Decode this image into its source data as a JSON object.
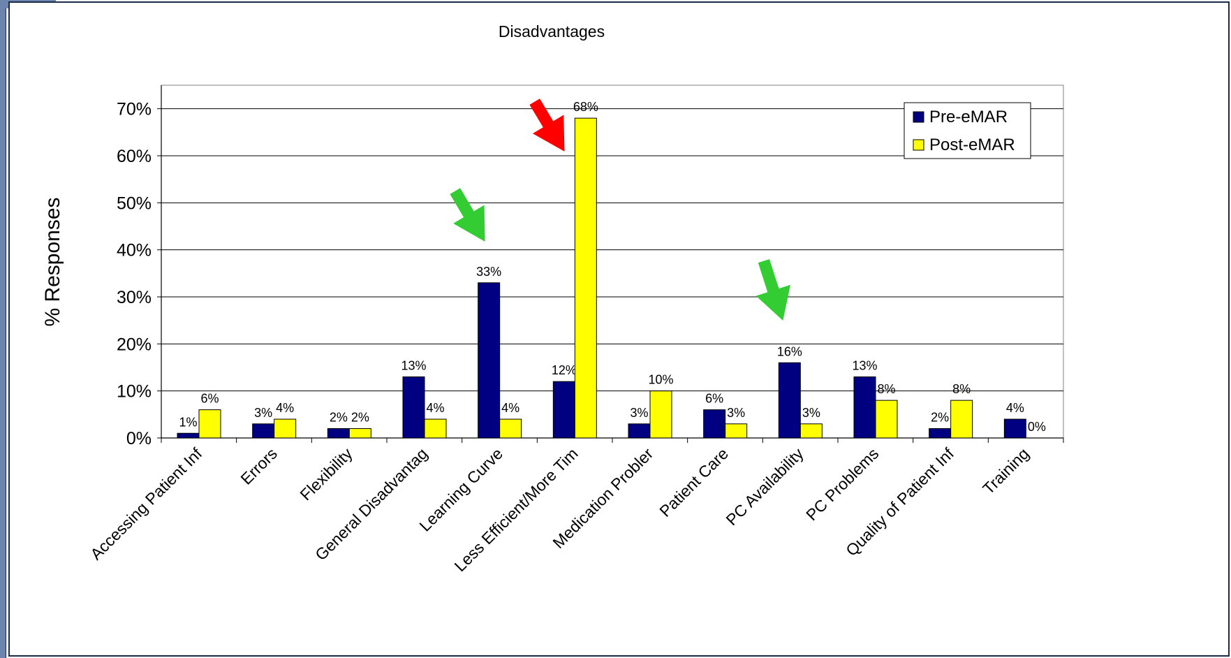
{
  "chart_data": {
    "type": "bar",
    "title": "Disadvantages",
    "xlabel": "",
    "ylabel": "% Responses",
    "ylim": [
      0,
      75
    ],
    "yticks": [
      "0%",
      "10%",
      "20%",
      "30%",
      "40%",
      "50%",
      "60%",
      "70%"
    ],
    "grid": true,
    "legend_position": "top-right",
    "categories": [
      "Accessing Patient Inf",
      "Errors",
      "Flexibility",
      "General Disadvantag",
      "Learning Curve",
      "Less Efficient/More Tim",
      "Medication Probler",
      "Patient Care",
      "PC Availability",
      "PC Problems",
      "Quality of Patient Inf",
      "Training"
    ],
    "series": [
      {
        "name": "Pre-eMAR",
        "color": "#000080",
        "values": [
          1,
          3,
          2,
          13,
          33,
          12,
          3,
          6,
          16,
          13,
          2,
          4
        ],
        "labels": [
          "1%",
          "3%",
          "2%",
          "13%",
          "33%",
          "12%",
          "3%",
          "6%",
          "16%",
          "13%",
          "2%",
          "4%"
        ]
      },
      {
        "name": "Post-eMAR",
        "color": "#ffff00",
        "values": [
          6,
          4,
          2,
          4,
          4,
          68,
          10,
          3,
          3,
          8,
          8,
          0
        ],
        "labels": [
          "6%",
          "4%",
          "2%",
          "4%",
          "4%",
          "68%",
          "10%",
          "3%",
          "3%",
          "8%",
          "8%",
          "0%"
        ]
      }
    ],
    "annotations": [
      {
        "type": "arrow",
        "color": "#33cc33",
        "points_to": "Learning Curve"
      },
      {
        "type": "arrow",
        "color": "#ff0000",
        "points_to": "Less Efficient/More Tim"
      },
      {
        "type": "arrow",
        "color": "#33cc33",
        "points_to": "PC Availability"
      }
    ]
  }
}
